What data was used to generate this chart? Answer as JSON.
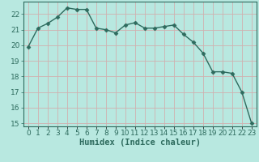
{
  "x": [
    0,
    1,
    2,
    3,
    4,
    5,
    6,
    7,
    8,
    9,
    10,
    11,
    12,
    13,
    14,
    15,
    16,
    17,
    18,
    19,
    20,
    21,
    22,
    23
  ],
  "y": [
    19.9,
    21.1,
    21.4,
    21.8,
    22.4,
    22.3,
    22.3,
    21.1,
    21.0,
    20.8,
    21.3,
    21.45,
    21.1,
    21.1,
    21.2,
    21.3,
    20.7,
    20.2,
    19.5,
    18.3,
    18.3,
    18.2,
    17.0,
    15.0
  ],
  "xlabel": "Humidex (Indice chaleur)",
  "line_color": "#2e6b5e",
  "marker_color": "#2e6b5e",
  "bg_color": "#b8e8e0",
  "grid_color_major": "#d0b0b0",
  "grid_color_minor": "#d0b0b0",
  "axis_color": "#2e6b5e",
  "tick_label_color": "#2e6b5e",
  "xlabel_color": "#2e6b5e",
  "ylim_min": 14.8,
  "ylim_max": 22.8,
  "yticks": [
    15,
    16,
    17,
    18,
    19,
    20,
    21,
    22
  ],
  "xticks": [
    0,
    1,
    2,
    3,
    4,
    5,
    6,
    7,
    8,
    9,
    10,
    11,
    12,
    13,
    14,
    15,
    16,
    17,
    18,
    19,
    20,
    21,
    22,
    23
  ],
  "xtick_labels": [
    "0",
    "1",
    "2",
    "3",
    "4",
    "5",
    "6",
    "7",
    "8",
    "9",
    "10",
    "11",
    "12",
    "13",
    "14",
    "15",
    "16",
    "17",
    "18",
    "19",
    "20",
    "21",
    "22",
    "23"
  ],
  "font_size_tick": 6.5,
  "font_size_xlabel": 7.5,
  "linewidth": 1.0,
  "markersize": 2.5
}
